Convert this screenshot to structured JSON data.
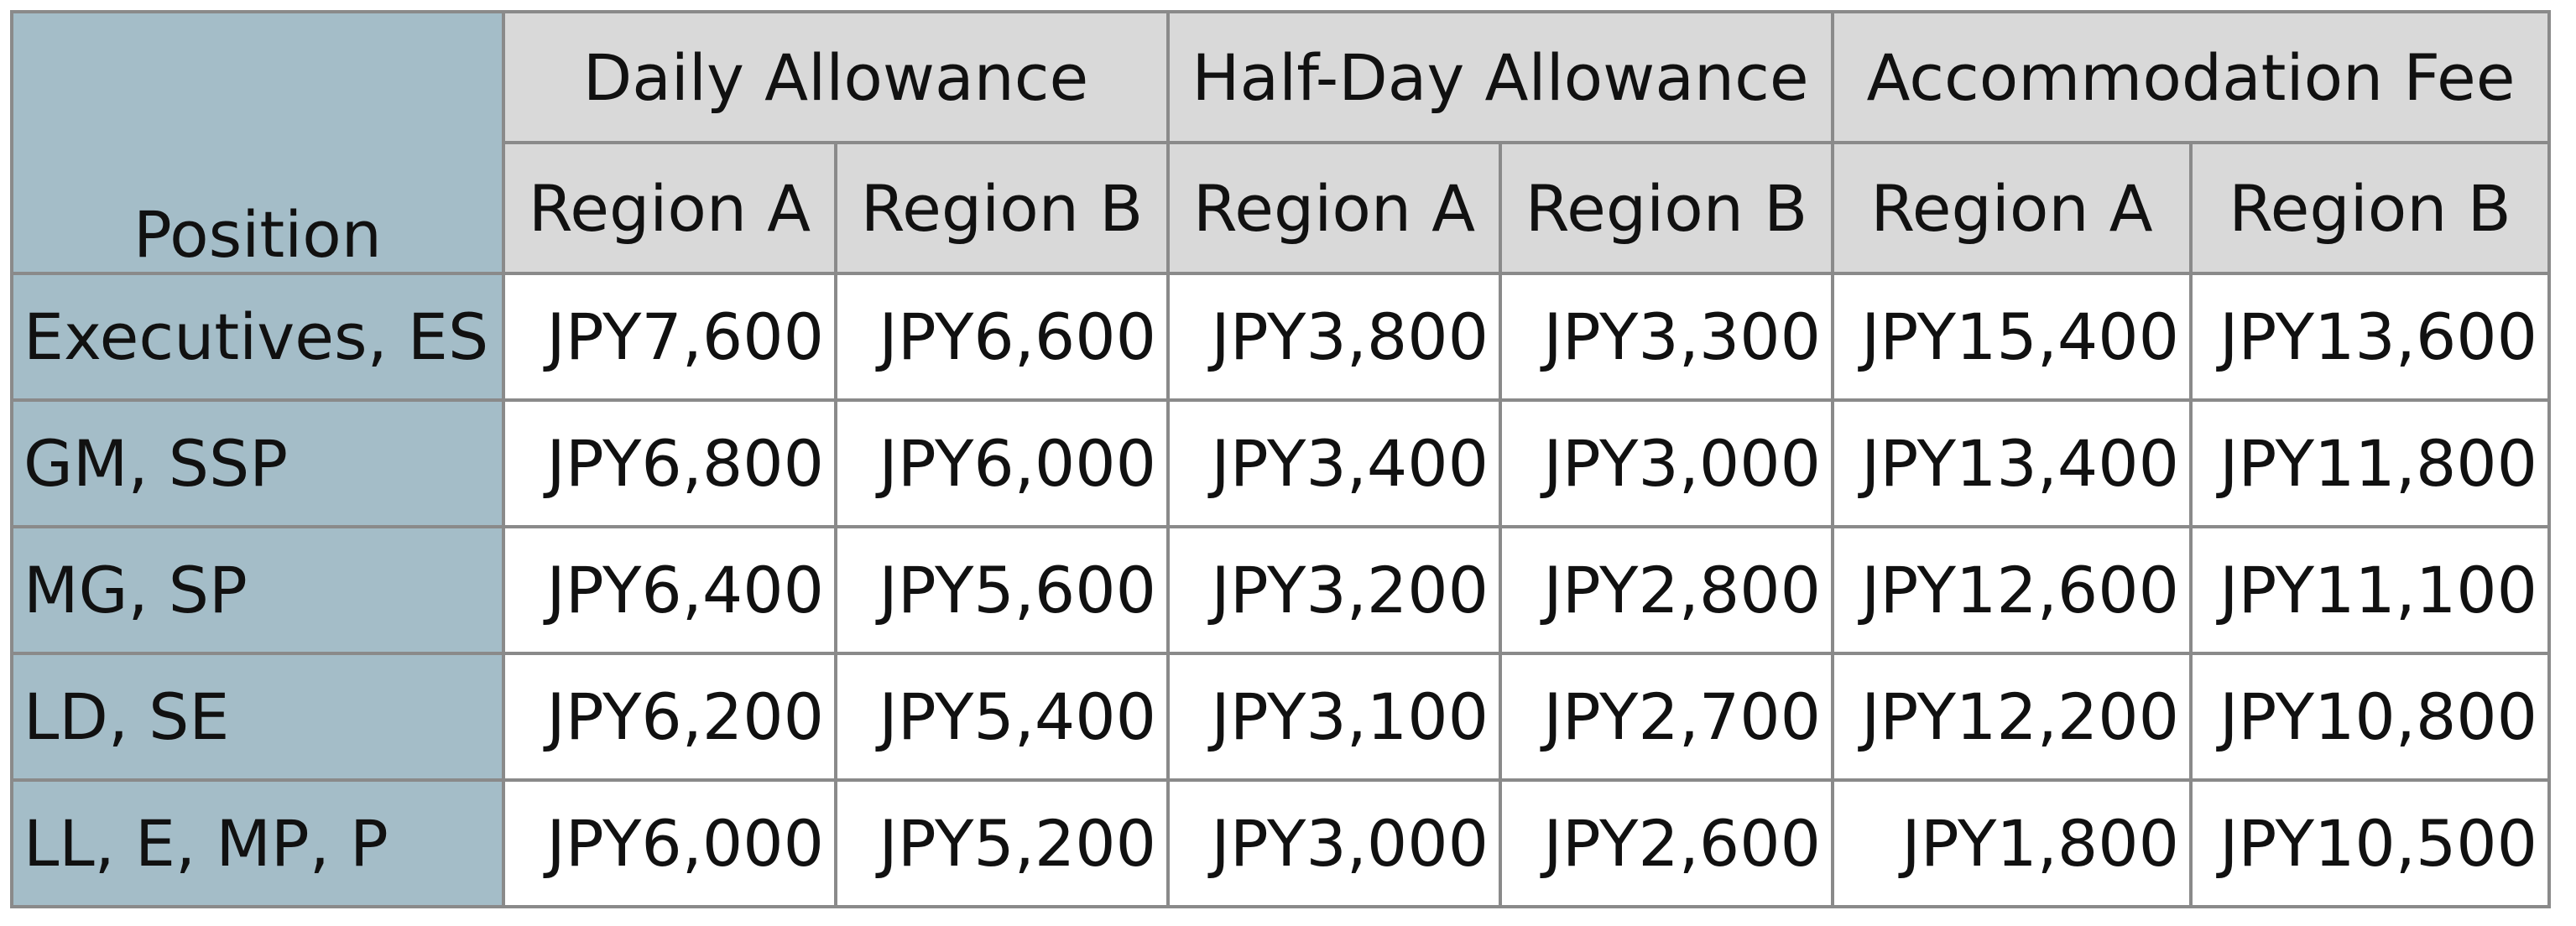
{
  "table": {
    "position_header": "Position",
    "groups": [
      {
        "label": "Daily Allowance"
      },
      {
        "label": "Half-Day Allowance"
      },
      {
        "label": "Accommodation Fee"
      }
    ],
    "subheaders": [
      "Region A",
      "Region B",
      "Region A",
      "Region B",
      "Region A",
      "Region B"
    ],
    "rows": [
      {
        "position": "Executives, ES",
        "values": [
          "JPY7,600",
          "JPY6,600",
          "JPY3,800",
          "JPY3,300",
          "JPY15,400",
          "JPY13,600"
        ]
      },
      {
        "position": "GM, SSP",
        "values": [
          "JPY6,800",
          "JPY6,000",
          "JPY3,400",
          "JPY3,000",
          "JPY13,400",
          "JPY11,800"
        ]
      },
      {
        "position": "MG, SP",
        "values": [
          "JPY6,400",
          "JPY5,600",
          "JPY3,200",
          "JPY2,800",
          "JPY12,600",
          "JPY11,100"
        ]
      },
      {
        "position": "LD, SE",
        "values": [
          "JPY6,200",
          "JPY5,400",
          "JPY3,100",
          "JPY2,700",
          "JPY12,200",
          "JPY10,800"
        ]
      },
      {
        "position": "LL, E, MP, P",
        "values": [
          "JPY6,000",
          "JPY5,200",
          "JPY3,000",
          "JPY2,600",
          "JPY1,800",
          "JPY10,500"
        ]
      }
    ],
    "colors": {
      "position_column_bg": "#a4bdc8",
      "header_bg": "#d9d9d9",
      "cell_bg": "#ffffff",
      "border": "#8a8a8a"
    }
  }
}
